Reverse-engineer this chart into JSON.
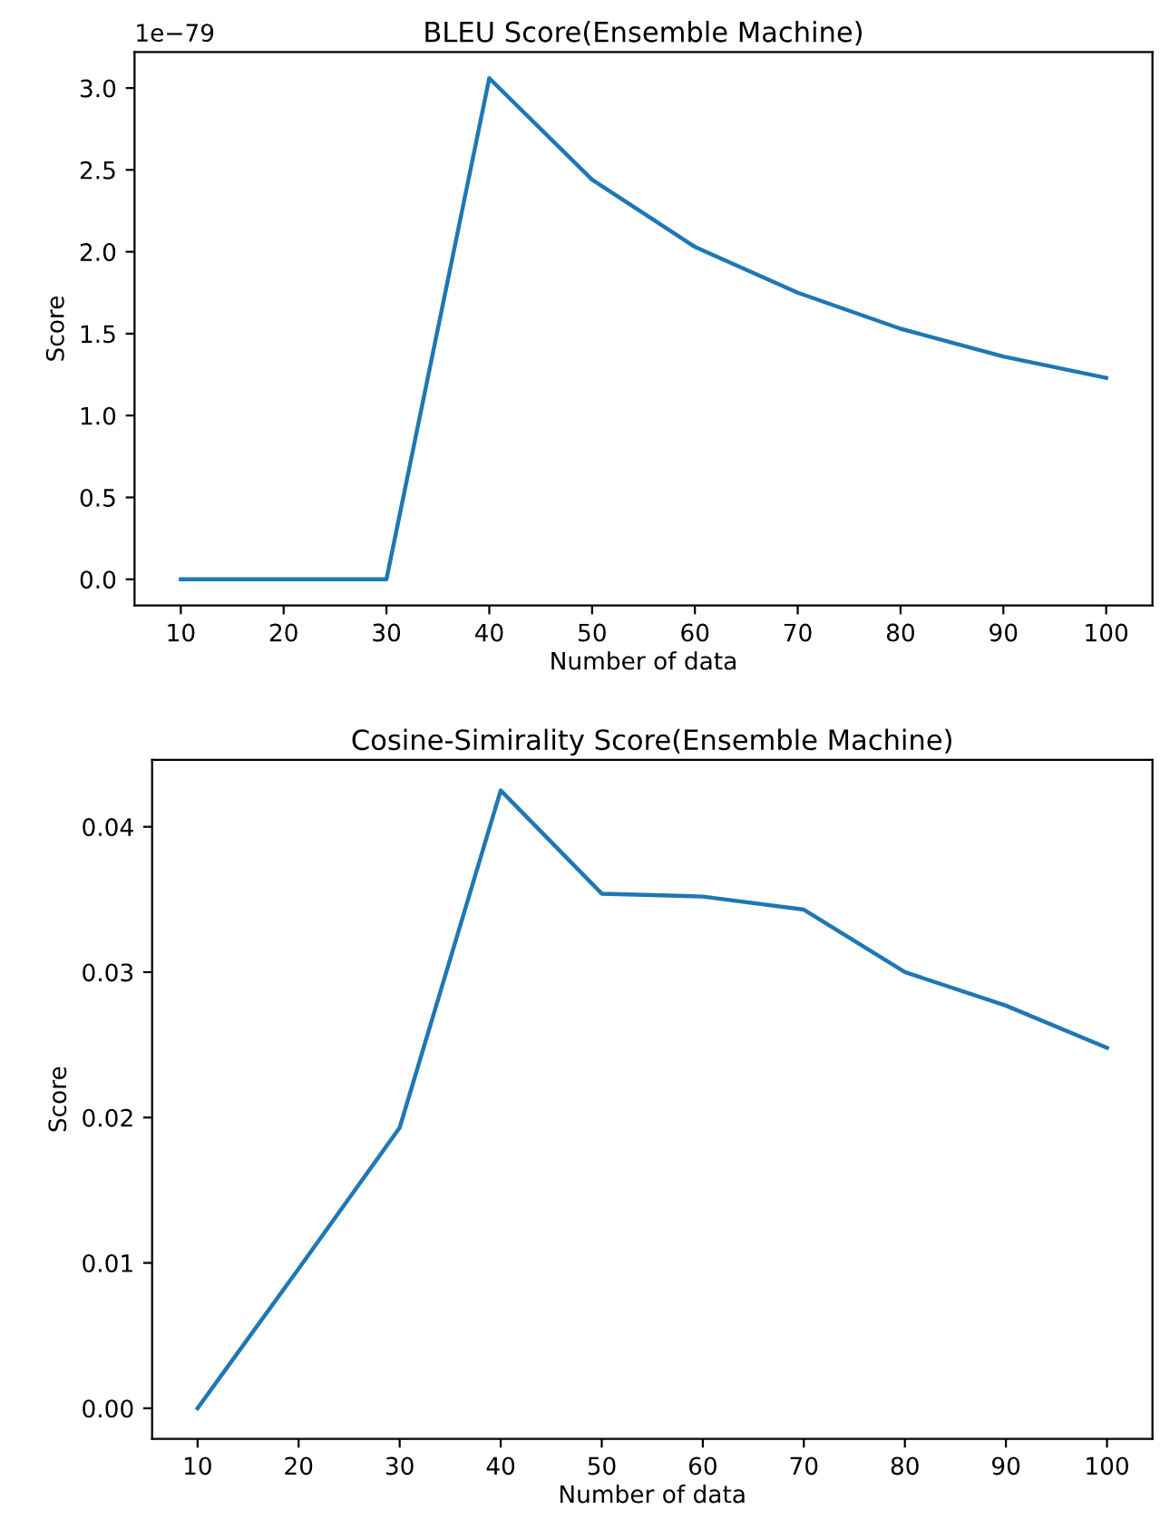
{
  "chart_data": [
    {
      "type": "line",
      "title": "BLEU Score(Ensemble Machine)",
      "xlabel": "Number of data",
      "ylabel": "Score",
      "annotations": [
        "1e−79"
      ],
      "x": [
        10,
        20,
        30,
        40,
        50,
        60,
        70,
        80,
        90,
        100
      ],
      "series": [
        {
          "color": "#1f77b4",
          "values": [
            0,
            0,
            0,
            3.06,
            2.44,
            2.03,
            1.75,
            1.53,
            1.36,
            1.23
          ]
        }
      ],
      "xlim": [
        5.5,
        104.5
      ],
      "xticks": [
        10,
        20,
        30,
        40,
        50,
        60,
        70,
        80,
        90,
        100
      ],
      "ylim": [
        -0.16,
        3.22
      ],
      "yticks": [
        {
          "value": 0,
          "label": "0.0"
        },
        0.5,
        {
          "value": 1,
          "label": "1.0"
        },
        1.5,
        {
          "value": 2,
          "label": "2.0"
        },
        2.5,
        {
          "value": 3,
          "label": "3.0"
        }
      ],
      "grid": false,
      "legend": false
    },
    {
      "type": "line",
      "title": "Cosine-Simirality Score(Ensemble Machine)",
      "xlabel": "Number of data",
      "ylabel": "Score",
      "x": [
        10,
        20,
        30,
        40,
        50,
        60,
        70,
        80,
        90,
        100
      ],
      "series": [
        {
          "color": "#1f77b4",
          "values": [
            0,
            0.0096,
            0.0193,
            0.0425,
            0.0354,
            0.0352,
            0.0343,
            0.03,
            0.0277,
            0.0248
          ]
        }
      ],
      "xlim": [
        5.5,
        104.5
      ],
      "xticks": [
        10,
        20,
        30,
        40,
        50,
        60,
        70,
        80,
        90,
        100
      ],
      "ylim": [
        -0.0021,
        0.0446
      ],
      "yticks": [
        {
          "value": 0,
          "label": "0.00"
        },
        {
          "value": 0.01,
          "label": "0.01"
        },
        {
          "value": 0.02,
          "label": "0.02"
        },
        {
          "value": 0.03,
          "label": "0.03"
        },
        {
          "value": 0.04,
          "label": "0.04"
        }
      ],
      "grid": false,
      "legend": false
    }
  ]
}
